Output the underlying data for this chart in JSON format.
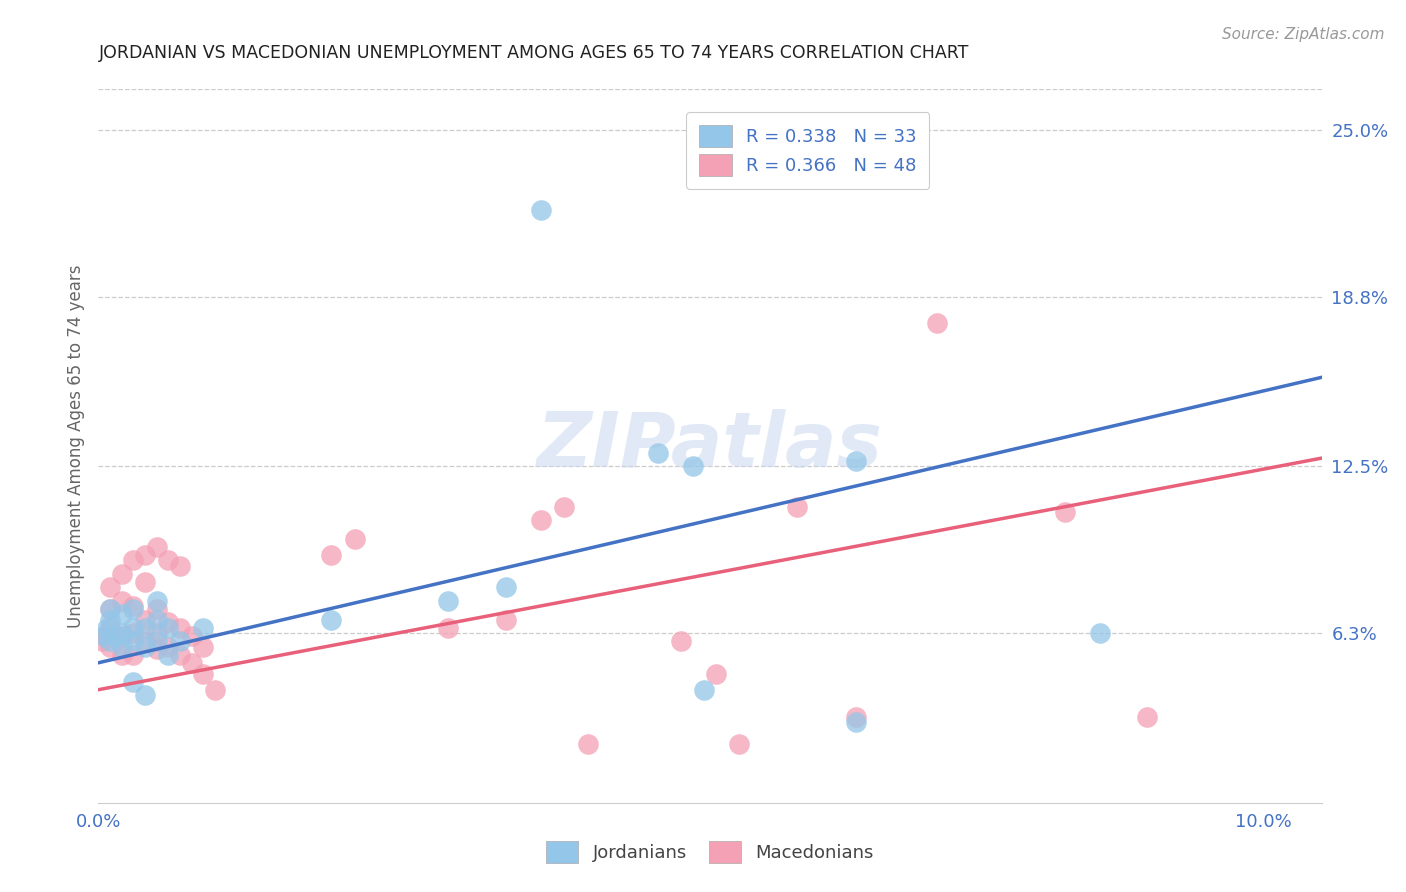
{
  "title": "JORDANIAN VS MACEDONIAN UNEMPLOYMENT AMONG AGES 65 TO 74 YEARS CORRELATION CHART",
  "source": "Source: ZipAtlas.com",
  "ylabel": "Unemployment Among Ages 65 to 74 years",
  "xlim": [
    0.0,
    0.105
  ],
  "ylim": [
    0.0,
    0.265
  ],
  "xticks": [
    0.0,
    0.02,
    0.04,
    0.06,
    0.08,
    0.1
  ],
  "xticklabels": [
    "0.0%",
    "",
    "",
    "",
    "",
    "10.0%"
  ],
  "yticks_right": [
    0.063,
    0.125,
    0.188,
    0.25
  ],
  "ytick_labels_right": [
    "6.3%",
    "12.5%",
    "18.8%",
    "25.0%"
  ],
  "blue_color": "#93C6E8",
  "pink_color": "#F4A0B5",
  "blue_line_color": "#4472c4",
  "pink_line_color": "#E8607A",
  "legend_label_blue": "R = 0.338   N = 33",
  "legend_label_pink": "R = 0.366   N = 48",
  "watermark": "ZIPatlas",
  "blue_dots_x": [
    0.0005,
    0.0007,
    0.001,
    0.001,
    0.001,
    0.0015,
    0.002,
    0.002,
    0.002,
    0.003,
    0.003,
    0.003,
    0.004,
    0.004,
    0.005,
    0.005,
    0.005,
    0.006,
    0.006,
    0.007,
    0.009,
    0.02,
    0.03,
    0.038,
    0.048,
    0.051,
    0.052,
    0.065,
    0.065,
    0.086,
    0.035,
    0.004,
    0.003
  ],
  "blue_dots_y": [
    0.062,
    0.065,
    0.06,
    0.068,
    0.072,
    0.062,
    0.058,
    0.063,
    0.07,
    0.06,
    0.065,
    0.072,
    0.058,
    0.065,
    0.06,
    0.068,
    0.075,
    0.055,
    0.065,
    0.06,
    0.065,
    0.068,
    0.075,
    0.22,
    0.13,
    0.125,
    0.042,
    0.127,
    0.03,
    0.063,
    0.08,
    0.04,
    0.045
  ],
  "pink_dots_x": [
    0.0003,
    0.0005,
    0.001,
    0.001,
    0.001,
    0.001,
    0.002,
    0.002,
    0.002,
    0.002,
    0.003,
    0.003,
    0.003,
    0.003,
    0.004,
    0.004,
    0.004,
    0.004,
    0.005,
    0.005,
    0.005,
    0.005,
    0.006,
    0.006,
    0.006,
    0.007,
    0.007,
    0.007,
    0.008,
    0.008,
    0.009,
    0.009,
    0.01,
    0.02,
    0.022,
    0.03,
    0.035,
    0.038,
    0.04,
    0.042,
    0.05,
    0.053,
    0.055,
    0.06,
    0.065,
    0.072,
    0.083,
    0.09
  ],
  "pink_dots_y": [
    0.06,
    0.062,
    0.058,
    0.065,
    0.072,
    0.08,
    0.055,
    0.062,
    0.075,
    0.085,
    0.055,
    0.063,
    0.073,
    0.09,
    0.06,
    0.068,
    0.082,
    0.092,
    0.057,
    0.063,
    0.072,
    0.095,
    0.058,
    0.067,
    0.09,
    0.055,
    0.065,
    0.088,
    0.052,
    0.062,
    0.048,
    0.058,
    0.042,
    0.092,
    0.098,
    0.065,
    0.068,
    0.105,
    0.11,
    0.022,
    0.06,
    0.048,
    0.022,
    0.11,
    0.032,
    0.178,
    0.108,
    0.032
  ],
  "blue_line_x": [
    0.0,
    0.105
  ],
  "blue_line_y": [
    0.052,
    0.158
  ],
  "pink_line_x": [
    0.0,
    0.105
  ],
  "pink_line_y": [
    0.042,
    0.128
  ],
  "background_color": "#ffffff",
  "grid_color": "#cccccc",
  "title_color": "#222222",
  "right_tick_color": "#4472c4",
  "axis_label_color": "#666666",
  "title_fontsize": 12.5,
  "tick_fontsize": 13,
  "label_fontsize": 12,
  "source_color": "#999999"
}
